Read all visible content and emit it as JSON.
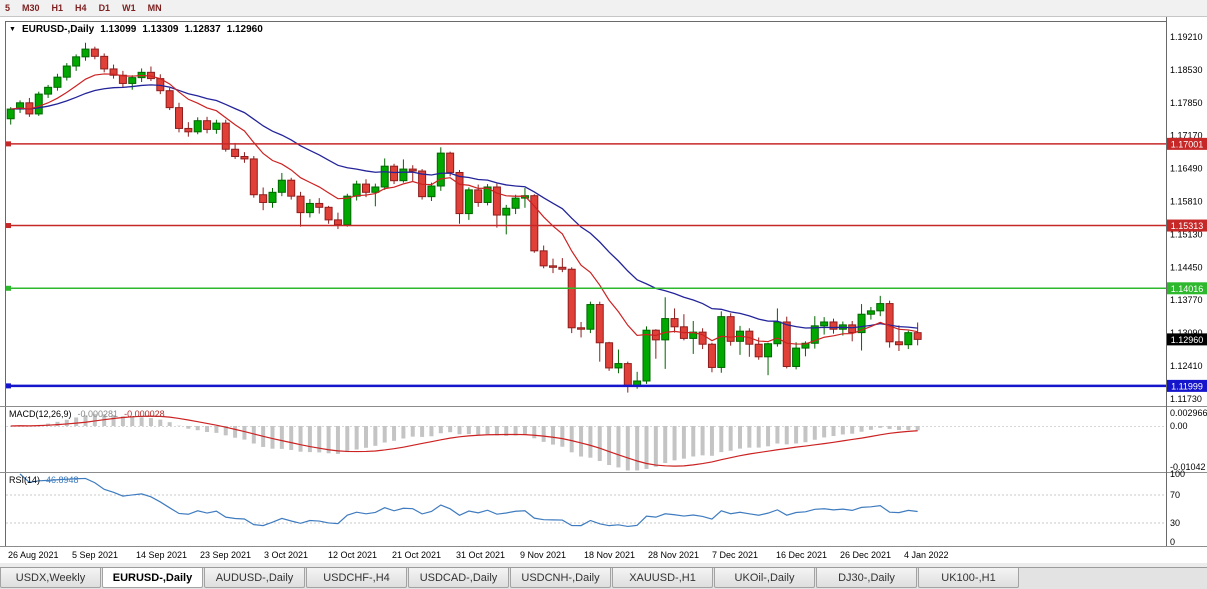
{
  "toolbar": {
    "timeframes": [
      "5",
      "M30",
      "H1",
      "H4",
      "D1",
      "W1",
      "MN"
    ]
  },
  "chart_header": {
    "dropdown_icon": "▼",
    "symbol": "EURUSD-,Daily",
    "open": "1.13099",
    "high": "1.13309",
    "low": "1.12837",
    "close": "1.12960"
  },
  "chart_data": {
    "type": "candlestick",
    "title": "EURUSD-,Daily",
    "price_axis": {
      "ticks": [
        {
          "label": "1.19210",
          "value": 1.1921
        },
        {
          "label": "1.18530",
          "value": 1.1853
        },
        {
          "label": "1.17850",
          "value": 1.1785
        },
        {
          "label": "1.17170",
          "value": 1.1717
        },
        {
          "label": "1.16490",
          "value": 1.1649
        },
        {
          "label": "1.15810",
          "value": 1.1581
        },
        {
          "label": "1.15130",
          "value": 1.1513
        },
        {
          "label": "1.14450",
          "value": 1.1445
        },
        {
          "label": "1.13770",
          "value": 1.1377
        },
        {
          "label": "1.13090",
          "value": 1.1309
        },
        {
          "label": "1.12410",
          "value": 1.1241
        },
        {
          "label": "1.11730",
          "value": 1.1173
        }
      ]
    },
    "x_axis": {
      "labels": [
        "26 Aug 2021",
        "5 Sep 2021",
        "14 Sep 2021",
        "23 Sep 2021",
        "3 Oct 2021",
        "12 Oct 2021",
        "21 Oct 2021",
        "31 Oct 2021",
        "9 Nov 2021",
        "18 Nov 2021",
        "28 Nov 2021",
        "7 Dec 2021",
        "16 Dec 2021",
        "26 Dec 2021",
        "4 Jan 2022"
      ]
    },
    "levels": [
      {
        "value": 1.17001,
        "label": "1.17001",
        "color": "#c62828",
        "width": 1.5
      },
      {
        "value": 1.15313,
        "label": "1.15313",
        "color": "#c62828",
        "width": 1.5
      },
      {
        "value": 1.14016,
        "label": "1.14016",
        "color": "#2eb82e",
        "width": 1.5
      },
      {
        "value": 1.11999,
        "label": "1.11999",
        "color": "#1515cc",
        "width": 2.5
      }
    ],
    "current_price": {
      "value": 1.1296,
      "label": "1.12960"
    },
    "ma_fast": {
      "period": 10,
      "color": "#cc2222"
    },
    "ma_slow": {
      "period": 24,
      "color": "#24249a"
    },
    "candles": [
      [
        1.1752,
        1.1776,
        1.174,
        1.1772
      ],
      [
        1.1772,
        1.179,
        1.1764,
        1.1785
      ],
      [
        1.1785,
        1.1795,
        1.1756,
        1.1762
      ],
      [
        1.1762,
        1.1808,
        1.1758,
        1.1803
      ],
      [
        1.1803,
        1.1822,
        1.1795,
        1.1817
      ],
      [
        1.1817,
        1.1845,
        1.181,
        1.1838
      ],
      [
        1.1838,
        1.1867,
        1.1831,
        1.1861
      ],
      [
        1.1861,
        1.1885,
        1.1851,
        1.188
      ],
      [
        1.188,
        1.1909,
        1.1872,
        1.1896
      ],
      [
        1.1896,
        1.1901,
        1.1875,
        1.1881
      ],
      [
        1.1881,
        1.1887,
        1.1848,
        1.1855
      ],
      [
        1.1855,
        1.1864,
        1.1835,
        1.1842
      ],
      [
        1.1842,
        1.1851,
        1.1816,
        1.1825
      ],
      [
        1.1825,
        1.1842,
        1.1812,
        1.1837
      ],
      [
        1.1837,
        1.1856,
        1.1828,
        1.1848
      ],
      [
        1.1848,
        1.186,
        1.183,
        1.1835
      ],
      [
        1.1835,
        1.1844,
        1.1803,
        1.181
      ],
      [
        1.181,
        1.1816,
        1.177,
        1.1775
      ],
      [
        1.1775,
        1.1785,
        1.1724,
        1.1732
      ],
      [
        1.1732,
        1.1745,
        1.1715,
        1.1725
      ],
      [
        1.1725,
        1.1755,
        1.172,
        1.1748
      ],
      [
        1.1748,
        1.1756,
        1.1722,
        1.173
      ],
      [
        1.173,
        1.175,
        1.1721,
        1.1743
      ],
      [
        1.1743,
        1.175,
        1.1684,
        1.1689
      ],
      [
        1.1689,
        1.1702,
        1.1669,
        1.1674
      ],
      [
        1.1674,
        1.1683,
        1.1661,
        1.1669
      ],
      [
        1.1669,
        1.1675,
        1.1589,
        1.1595
      ],
      [
        1.1595,
        1.161,
        1.1563,
        1.1579
      ],
      [
        1.1579,
        1.1609,
        1.1568,
        1.16
      ],
      [
        1.16,
        1.164,
        1.1592,
        1.1625
      ],
      [
        1.1625,
        1.163,
        1.1585,
        1.1592
      ],
      [
        1.1592,
        1.1601,
        1.1529,
        1.1558
      ],
      [
        1.1558,
        1.1586,
        1.1548,
        1.1577
      ],
      [
        1.1577,
        1.1588,
        1.1556,
        1.1569
      ],
      [
        1.1569,
        1.1572,
        1.1535,
        1.1543
      ],
      [
        1.1543,
        1.1558,
        1.1524,
        1.1533
      ],
      [
        1.1533,
        1.1597,
        1.1529,
        1.1592
      ],
      [
        1.1592,
        1.1624,
        1.1583,
        1.1617
      ],
      [
        1.1617,
        1.1627,
        1.159,
        1.16
      ],
      [
        1.16,
        1.1618,
        1.1571,
        1.1611
      ],
      [
        1.1611,
        1.167,
        1.1605,
        1.1654
      ],
      [
        1.1654,
        1.1659,
        1.1617,
        1.1624
      ],
      [
        1.1624,
        1.1668,
        1.162,
        1.1648
      ],
      [
        1.1648,
        1.1656,
        1.1623,
        1.1644
      ],
      [
        1.1644,
        1.1648,
        1.1585,
        1.1591
      ],
      [
        1.1591,
        1.162,
        1.1582,
        1.1613
      ],
      [
        1.1613,
        1.1693,
        1.1603,
        1.1681
      ],
      [
        1.1681,
        1.1684,
        1.1633,
        1.1641
      ],
      [
        1.1641,
        1.1646,
        1.1535,
        1.1556
      ],
      [
        1.1556,
        1.161,
        1.1543,
        1.1605
      ],
      [
        1.1605,
        1.1616,
        1.157,
        1.1579
      ],
      [
        1.1579,
        1.1617,
        1.1573,
        1.1611
      ],
      [
        1.1611,
        1.1618,
        1.1527,
        1.1553
      ],
      [
        1.1553,
        1.1574,
        1.1513,
        1.1567
      ],
      [
        1.1567,
        1.1595,
        1.1555,
        1.1588
      ],
      [
        1.1588,
        1.1609,
        1.1568,
        1.1593
      ],
      [
        1.1593,
        1.1596,
        1.1475,
        1.1479
      ],
      [
        1.1479,
        1.149,
        1.1443,
        1.1448
      ],
      [
        1.1448,
        1.1463,
        1.1433,
        1.1445
      ],
      [
        1.1445,
        1.1464,
        1.1435,
        1.1441
      ],
      [
        1.1441,
        1.1445,
        1.1309,
        1.132
      ],
      [
        1.132,
        1.1332,
        1.13,
        1.1317
      ],
      [
        1.1317,
        1.1374,
        1.1309,
        1.1368
      ],
      [
        1.1368,
        1.1374,
        1.125,
        1.1289
      ],
      [
        1.1289,
        1.1291,
        1.1231,
        1.1237
      ],
      [
        1.1237,
        1.1275,
        1.1226,
        1.1246
      ],
      [
        1.1246,
        1.125,
        1.1186,
        1.1199
      ],
      [
        1.1199,
        1.1229,
        1.1194,
        1.121
      ],
      [
        1.121,
        1.1323,
        1.1204,
        1.1315
      ],
      [
        1.1315,
        1.1317,
        1.1256,
        1.1295
      ],
      [
        1.1295,
        1.1383,
        1.1235,
        1.1339
      ],
      [
        1.1339,
        1.136,
        1.131,
        1.1322
      ],
      [
        1.1322,
        1.1348,
        1.1294,
        1.1298
      ],
      [
        1.1298,
        1.1334,
        1.1266,
        1.1311
      ],
      [
        1.1311,
        1.1319,
        1.1276,
        1.1286
      ],
      [
        1.1286,
        1.1289,
        1.1228,
        1.1238
      ],
      [
        1.1238,
        1.1354,
        1.1227,
        1.1343
      ],
      [
        1.1343,
        1.135,
        1.1283,
        1.1292
      ],
      [
        1.1292,
        1.1324,
        1.1264,
        1.1313
      ],
      [
        1.1313,
        1.1319,
        1.126,
        1.1286
      ],
      [
        1.1286,
        1.13,
        1.1254,
        1.126
      ],
      [
        1.126,
        1.1289,
        1.1222,
        1.1287
      ],
      [
        1.1287,
        1.136,
        1.1281,
        1.1332
      ],
      [
        1.1332,
        1.1343,
        1.1236,
        1.124
      ],
      [
        1.124,
        1.129,
        1.1234,
        1.1278
      ],
      [
        1.1278,
        1.1292,
        1.1261,
        1.1288
      ],
      [
        1.1288,
        1.1344,
        1.1277,
        1.1324
      ],
      [
        1.1324,
        1.1342,
        1.1306,
        1.1332
      ],
      [
        1.1332,
        1.1339,
        1.1308,
        1.1317
      ],
      [
        1.1317,
        1.1333,
        1.1304,
        1.1326
      ],
      [
        1.1326,
        1.1334,
        1.1292,
        1.131
      ],
      [
        1.131,
        1.1369,
        1.1273,
        1.1348
      ],
      [
        1.1348,
        1.1363,
        1.1337,
        1.1355
      ],
      [
        1.1355,
        1.1386,
        1.1344,
        1.137
      ],
      [
        1.137,
        1.1376,
        1.1279,
        1.1291
      ],
      [
        1.1291,
        1.1325,
        1.1272,
        1.1285
      ],
      [
        1.1285,
        1.1314,
        1.1276,
        1.13099
      ],
      [
        1.13099,
        1.13309,
        1.12837,
        1.1296
      ]
    ],
    "indicators": {
      "macd": {
        "name": "MACD(12,26,9)",
        "fast": 12,
        "slow": 26,
        "signal": 9,
        "main_value": "-0.000281",
        "signal_value": "-0.000028",
        "axis_ticks": [
          {
            "label": "0.002966",
            "value": 0.002966
          },
          {
            "label": "0.00",
            "value": 0
          },
          {
            "label": "-0.01042",
            "value": -0.01042
          }
        ]
      },
      "rsi": {
        "name": "RSI(14)",
        "period": 14,
        "value": "46.8948",
        "axis_ticks": [
          {
            "label": "100",
            "value": 100
          },
          {
            "label": "70",
            "value": 70
          },
          {
            "label": "30",
            "value": 30
          },
          {
            "label": "0",
            "value": 0
          }
        ],
        "levels": [
          70,
          30
        ]
      }
    }
  },
  "tabs": [
    {
      "label": "USDX,Weekly",
      "active": false
    },
    {
      "label": "EURUSD-,Daily",
      "active": true
    },
    {
      "label": "AUDUSD-,Daily",
      "active": false
    },
    {
      "label": "USDCHF-,H4",
      "active": false
    },
    {
      "label": "USDCAD-,Daily",
      "active": false
    },
    {
      "label": "USDCNH-,Daily",
      "active": false
    },
    {
      "label": "XAUUSD-,H1",
      "active": false
    },
    {
      "label": "UKOil-,Daily",
      "active": false
    },
    {
      "label": "DJ30-,Daily",
      "active": false
    },
    {
      "label": "UK100-,H1",
      "active": false
    }
  ],
  "colors": {
    "bull": "#00a800",
    "bull_border": "#006600",
    "bear": "#e04038",
    "bear_border": "#8f1d1d",
    "macd_hist": "#c4c4c4",
    "macd_signal": "#cc2222",
    "rsi_line": "#3f7cbf",
    "level_tag_text": "#ffffff",
    "current_tag_bg": "#000000"
  }
}
